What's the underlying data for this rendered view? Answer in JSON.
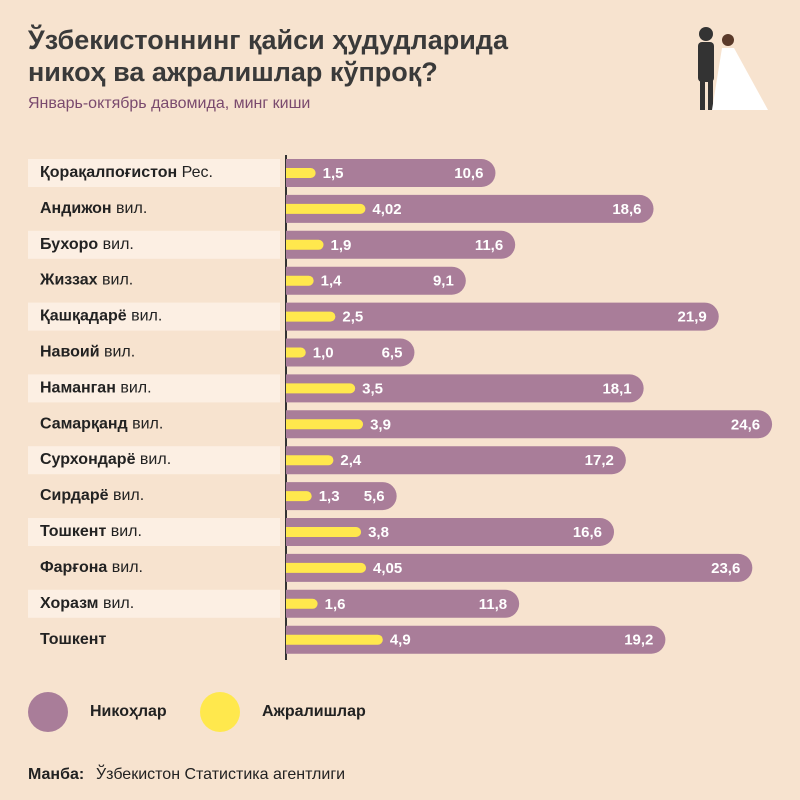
{
  "chart_data": {
    "type": "bar",
    "title": [
      "Ўзбекистоннинг қайси ҳудудларида",
      "никоҳ ва ажралишлар кўпроқ?"
    ],
    "subtitle": "Январь-октябрь давомида, минг киши",
    "categories": [
      "Қорақалпоғистон Рес.",
      "Андижон вил.",
      "Бухоро вил.",
      "Жиззах вил.",
      "Қашқадарё вил.",
      "Навоий вил.",
      "Наманган вил.",
      "Самарқанд вил.",
      "Сурхондарё вил.",
      "Сирдарё вил.",
      "Тошкент вил.",
      "Фарғона вил.",
      "Хоразм вил.",
      "Тошкент"
    ],
    "series": [
      {
        "name": "Никоҳлар",
        "color": "#a97d99",
        "values": [
          10.6,
          18.6,
          11.6,
          9.1,
          21.9,
          6.5,
          18.1,
          24.6,
          17.2,
          5.6,
          16.6,
          23.6,
          11.8,
          19.2
        ],
        "value_labels": [
          "10,6",
          "18,6",
          "11,6",
          "9,1",
          "21,9",
          "6,5",
          "18,1",
          "24,6",
          "17,2",
          "5,6",
          "16,6",
          "23,6",
          "11,8",
          "19,2"
        ]
      },
      {
        "name": "Ажралишлар",
        "color": "#ffe84d",
        "values": [
          1.5,
          4.02,
          1.9,
          1.4,
          2.5,
          1.0,
          3.5,
          3.9,
          2.4,
          1.3,
          3.8,
          4.05,
          1.6,
          4.9
        ],
        "value_labels": [
          "1,5",
          "4,02",
          "1,9",
          "1,4",
          "2,5",
          "1,0",
          "3,5",
          "3,9",
          "2,4",
          "1,3",
          "3,8",
          "4,05",
          "1,6",
          "4,9"
        ]
      }
    ],
    "source_label": "Манба:",
    "source": "Ўзбекистон Статистика агентлиги"
  }
}
